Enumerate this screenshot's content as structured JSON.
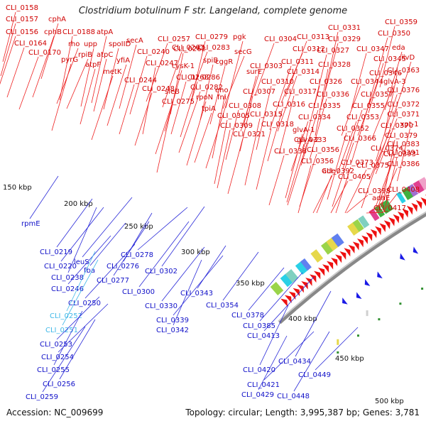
{
  "title": "Clostridium botulinum F str. Langeland, complete genome",
  "footer": {
    "accession": "Accession: NC_009699",
    "summary": "Topology: circular; Length: 3,995,387 bp; Genes: 3,781"
  },
  "colors": {
    "forward_label": "#d00000",
    "reverse_label": "#1010c8",
    "highlight_label": "#40b8e8",
    "backbone": "#888888",
    "forward_arrow": "#ee1111",
    "reverse_arrow": "#1a1ae6",
    "scale_tick": "#2f8f2f"
  },
  "scale_labels": [
    "150 kbp",
    "200 kbp",
    "250 kbp",
    "300 kbp",
    "350 kbp",
    "400 kbp",
    "450 kbp",
    "500 kbp"
  ],
  "forward_labels": [
    "CLI_0158",
    "CLI_0157",
    "cphA",
    "CLI_0156",
    "cphB",
    "CLI_0188",
    "atpA",
    "CLI_0164",
    "CLI_0170",
    "rho",
    "upp",
    "spoIID",
    "secA",
    "pyrG",
    "rpiB",
    "atpC",
    "atpF",
    "CLI_0240",
    "yfiA",
    "metK",
    "CLI_0247",
    "CLI_0244",
    "CLI_0248",
    "CLI_0261",
    "CLI_0257",
    "CLI_0262",
    "CLI_0279",
    "pgk",
    "CLI_0283",
    "secG",
    "spiB",
    "cggR",
    "cysK-1",
    "rpoN",
    "fni",
    "surE",
    "CLI_0268",
    "CLI_0286",
    "sleB",
    "CLI_0282",
    "eno",
    "CLI_0275",
    "tpiA",
    "CLI_0304",
    "CLI_0313",
    "CLI_0331",
    "CLI_0359",
    "CLI_0329",
    "CLI_0350",
    "CLI_0312",
    "CLI_0327",
    "CLI_0347",
    "eda",
    "CLI_0303",
    "CLI_0311",
    "CLI_0328",
    "CLI_0345",
    "ilvD",
    "CLI_0314",
    "CLI_0346",
    "CLI_0363",
    "CLI_0310",
    "CLI_0326",
    "CLI_0344",
    "glvA-3",
    "CLI_0307",
    "CLI_0317",
    "CLI_0336",
    "CLI_0357",
    "CLI_0376",
    "CLI_0308",
    "CLI_0316",
    "CLI_0335",
    "CLI_0355",
    "CLI_0372",
    "CLI_0305",
    "CLI_0315",
    "CLI_0334",
    "CLI_0353",
    "CLI_0371",
    "CLI_0309",
    "CLI_0318",
    "glvA-1",
    "CLI_0352",
    "CLI_0370",
    "xpt-1",
    "CLI_0321",
    "CLI_0333",
    "glvA-2",
    "CLI_0366",
    "CLI_0379",
    "CLI_0338",
    "CLI_0356",
    "CLI_0374",
    "CLI_0383",
    "CLI_0356",
    "CLI_0373",
    "CLI_0393",
    "ade",
    "CLI_0375",
    "CLI_0391",
    "CLI_0392",
    "CLI_0405",
    "CLI_0386",
    "CLI_0398",
    "adhE",
    "CLI_0408",
    "CLI_0417"
  ],
  "reverse_labels": [
    "rpmE",
    "CLI_0219",
    "CLI_0220",
    "leuS",
    "CLI_0238",
    "fba",
    "CLI_0246",
    "CLI_0250",
    "CLI_0252",
    "CLI_0251",
    "CLI_0253",
    "CLI_0254",
    "CLI_0255",
    "CLI_0256",
    "CLI_0259",
    "CLI_0278",
    "CLI_0276",
    "CLI_0277",
    "CLI_0302",
    "CLI_0300",
    "CLI_0343",
    "CLI_0354",
    "CLI_0330",
    "CLI_0339",
    "CLI_0342",
    "CLI_0378",
    "CLI_0385",
    "CLI_0413",
    "CLI_0420",
    "CLI_0434",
    "CLI_0449",
    "CLI_0421",
    "CLI_0429",
    "CLI_0448"
  ],
  "highlight_labels": [
    "CLI_0252",
    "CLI_0251"
  ]
}
